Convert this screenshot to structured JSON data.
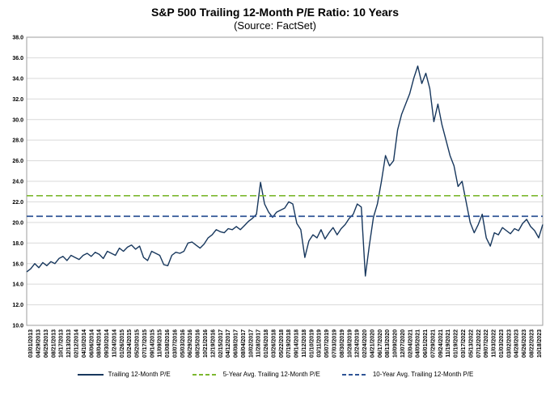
{
  "title": "S&P 500 Trailing 12-Month P/E Ratio: 10 Years",
  "subtitle": "(Source: FactSet)",
  "chart_data": {
    "type": "line",
    "title": "S&P 500 Trailing 12-Month P/E Ratio: 10 Years",
    "subtitle": "(Source: FactSet)",
    "grid": true,
    "legend_position": "bottom",
    "ylim": [
      10.0,
      38.0
    ],
    "y_tick_step": 2.0,
    "y_tick_labels": [
      "10.0",
      "12.0",
      "14.0",
      "16.0",
      "18.0",
      "20.0",
      "22.0",
      "24.0",
      "26.0",
      "28.0",
      "30.0",
      "32.0",
      "34.0",
      "36.0",
      "38.0"
    ],
    "x_tick_labels": [
      "03/01/2013",
      "04/29/2013",
      "06/25/2013",
      "08/21/2013",
      "10/17/2013",
      "12/13/2013",
      "02/12/2014",
      "04/10/2014",
      "06/06/2014",
      "08/04/2014",
      "09/30/2014",
      "11/24/2014",
      "01/26/2015",
      "03/24/2015",
      "05/20/2015",
      "07/17/2015",
      "09/14/2015",
      "11/09/2015",
      "01/08/2016",
      "03/07/2016",
      "05/03/2016",
      "06/29/2016",
      "08/25/2016",
      "10/21/2016",
      "12/19/2016",
      "02/15/2017",
      "04/12/2017",
      "06/08/2017",
      "08/04/2017",
      "10/02/2017",
      "11/28/2017",
      "01/26/2018",
      "03/26/2018",
      "05/22/2018",
      "07/19/2018",
      "09/14/2018",
      "11/12/2018",
      "01/10/2019",
      "03/11/2019",
      "05/07/2019",
      "07/03/2019",
      "08/30/2019",
      "10/28/2019",
      "12/24/2019",
      "02/24/2020",
      "04/21/2020",
      "06/17/2020",
      "08/13/2020",
      "10/09/2020",
      "12/07/2020",
      "02/04/2021",
      "04/05/2021",
      "06/01/2021",
      "07/29/2021",
      "09/24/2021",
      "11/19/2021",
      "01/19/2022",
      "03/17/2022",
      "05/13/2022",
      "07/12/2022",
      "09/07/2022",
      "11/03/2022",
      "01/03/2023",
      "03/02/2023",
      "04/28/2023",
      "06/26/2023",
      "08/22/2023",
      "10/18/2023"
    ],
    "series": [
      {
        "name": "Trailing 12-Month P/E",
        "style": "solid",
        "color": "#17375d",
        "values": [
          15.2,
          15.5,
          16.0,
          15.6,
          16.1,
          15.8,
          16.2,
          16.0,
          16.5,
          16.7,
          16.3,
          16.8,
          16.6,
          16.4,
          16.8,
          17.0,
          16.7,
          17.1,
          16.9,
          16.5,
          17.2,
          17.0,
          16.8,
          17.5,
          17.2,
          17.6,
          17.8,
          17.4,
          17.7,
          16.6,
          16.3,
          17.2,
          17.0,
          16.8,
          15.9,
          15.8,
          16.8,
          17.1,
          17.0,
          17.2,
          18.0,
          18.1,
          17.8,
          17.5,
          17.9,
          18.5,
          18.8,
          19.3,
          19.1,
          19.0,
          19.4,
          19.3,
          19.6,
          19.3,
          19.7,
          20.1,
          20.4,
          20.8,
          23.9,
          21.8,
          21.0,
          20.5,
          21.0,
          21.2,
          21.4,
          22.0,
          21.8,
          19.9,
          19.3,
          16.6,
          18.2,
          18.8,
          18.5,
          19.3,
          18.4,
          19.0,
          19.5,
          18.8,
          19.4,
          19.8,
          20.4,
          20.8,
          21.8,
          21.5,
          14.8,
          17.8,
          20.5,
          21.8,
          24.0,
          26.5,
          25.5,
          26.0,
          29.0,
          30.5,
          31.5,
          32.5,
          34.0,
          35.2,
          33.5,
          34.5,
          33.0,
          29.8,
          31.5,
          29.5,
          28.0,
          26.5,
          25.5,
          23.5,
          24.0,
          22.0,
          20.0,
          19.0,
          19.8,
          20.8,
          18.5,
          17.7,
          19.0,
          18.8,
          19.5,
          19.2,
          18.9,
          19.4,
          19.2,
          19.9,
          20.3,
          19.6,
          19.2,
          18.5,
          19.8
        ]
      },
      {
        "name": "5-Year Avg. Trailing 12-Month P/E",
        "style": "dashed",
        "color": "#7cb82f",
        "avg_value": 22.6
      },
      {
        "name": "10-Year Avg. Trailing 12-Month P/E",
        "style": "dashed",
        "color": "#2f5496",
        "avg_value": 20.6
      }
    ]
  }
}
